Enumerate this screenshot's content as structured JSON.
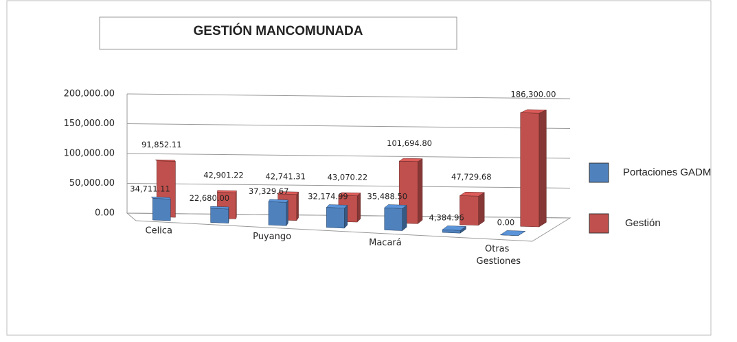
{
  "chart_data": {
    "type": "bar3d",
    "title": "GESTIÓN MANCOMUNADA",
    "categories": [
      "Celica",
      null,
      "Puyango",
      null,
      "Macará",
      null,
      "Otras Gestiones"
    ],
    "series": [
      {
        "name": "Portaciones GADM",
        "color": "#4f81bd",
        "values": [
          34711.11,
          22680.0,
          37329.67,
          32174.99,
          35488.5,
          4384.96,
          0.0
        ],
        "value_labels": [
          "34,711.11",
          "22,680.00",
          "37,329.67",
          "32,174.99",
          "35,488.50",
          "4,384.96",
          "0.00"
        ]
      },
      {
        "name": "Gestión",
        "color": "#c0504d",
        "values": [
          91852.11,
          42901.22,
          42741.31,
          43070.22,
          101694.8,
          47729.68,
          186300.0
        ],
        "value_labels": [
          "91,852.11",
          "42,901.22",
          "42,741.31",
          "43,070.22",
          "101,694.80",
          "47,729.68",
          "186,300.00"
        ]
      }
    ],
    "ylim": [
      0,
      200000
    ],
    "yticks": [
      {
        "value": 0,
        "label": "0.00"
      },
      {
        "value": 50000,
        "label": "50,000.00"
      },
      {
        "value": 100000,
        "label": "100,000.00"
      },
      {
        "value": 150000,
        "label": "150,000.00"
      },
      {
        "value": 200000,
        "label": "200,000.00"
      }
    ],
    "grid": true,
    "legend": "right"
  }
}
